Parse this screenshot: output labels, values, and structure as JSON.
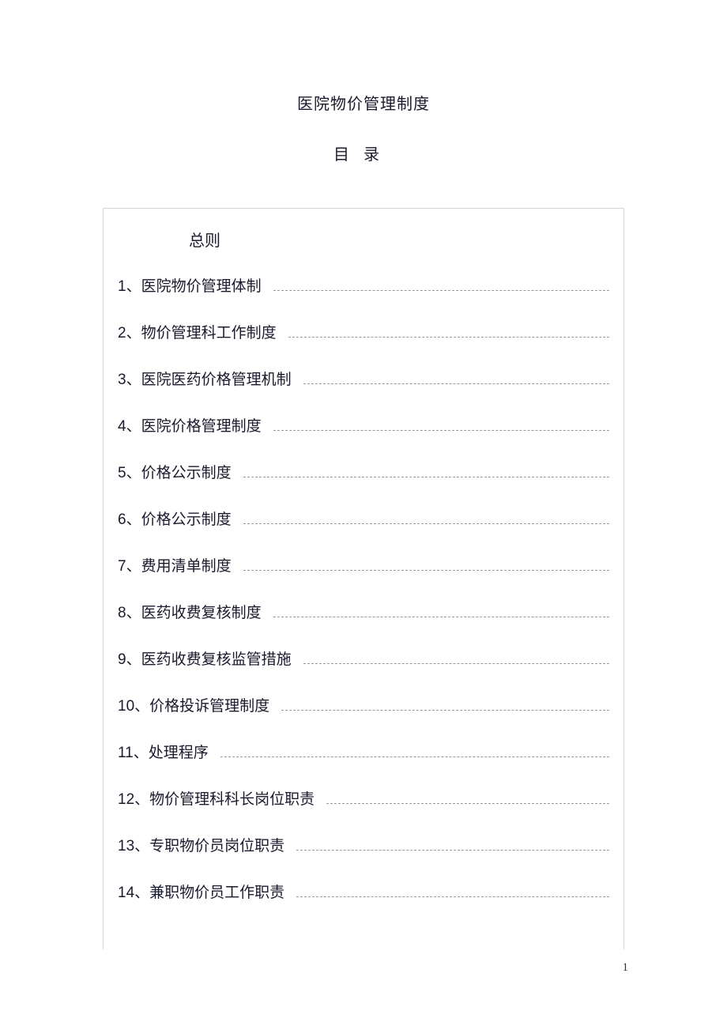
{
  "title": "医院物价管理制度",
  "subtitle": "目录",
  "general_label": "总则",
  "toc_items": [
    {
      "num": "1",
      "text": "医院物价管理体制"
    },
    {
      "num": "2",
      "text": "物价管理科工作制度"
    },
    {
      "num": "3",
      "text": "医院医药价格管理机制"
    },
    {
      "num": "4",
      "text": "医院价格管理制度"
    },
    {
      "num": "5",
      "text": "价格公示制度"
    },
    {
      "num": "6",
      "text": "价格公示制度"
    },
    {
      "num": "7",
      "text": "费用清单制度"
    },
    {
      "num": "8",
      "text": "医药收费复核制度"
    },
    {
      "num": "9",
      "text": "医药收费复核监管措施"
    },
    {
      "num": "10",
      "text": "价格投诉管理制度"
    },
    {
      "num": "11",
      "text": "处理程序"
    },
    {
      "num": "12",
      "text": "物价管理科科长岗位职责"
    },
    {
      "num": "13",
      "text": "专职物价员岗位职责"
    },
    {
      "num": "14",
      "text": "兼职物价员工作职责"
    }
  ],
  "separator": "、",
  "page_number": "1",
  "colors": {
    "text": "#1a1a2e",
    "border": "#d5d5d5",
    "leader": "#999999",
    "background": "#ffffff"
  },
  "fonts": {
    "title_size": 20,
    "item_size": 19,
    "pagenum_size": 15
  }
}
